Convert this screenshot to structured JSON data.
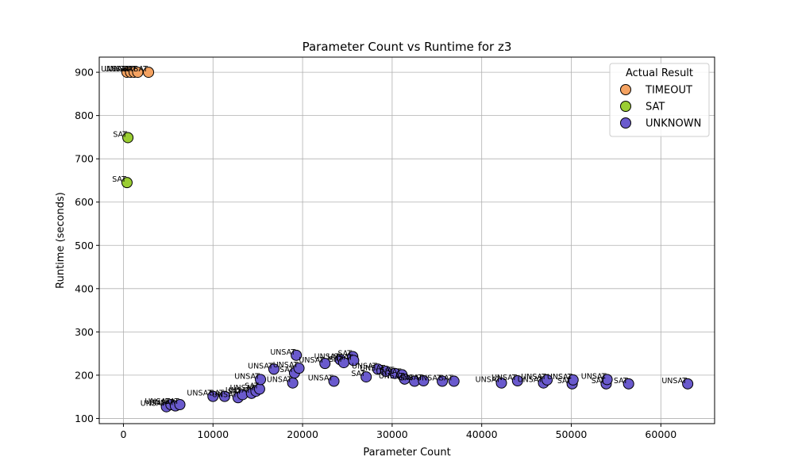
{
  "chart_data": {
    "type": "scatter",
    "title": "Parameter Count vs Runtime for z3",
    "xlabel": "Parameter Count",
    "ylabel": "Runtime (seconds)",
    "xlim": [
      -2700,
      66000
    ],
    "ylim": [
      88,
      935
    ],
    "xticks": [
      0,
      10000,
      20000,
      30000,
      40000,
      50000,
      60000
    ],
    "yticks": [
      100,
      200,
      300,
      400,
      500,
      600,
      700,
      800,
      900
    ],
    "grid": true,
    "legend": {
      "title": "Actual Result",
      "position": "top-right"
    },
    "series": [
      {
        "name": "TIMEOUT",
        "color": "#f4a261",
        "points": [
          {
            "x": 400,
            "y": 900,
            "label": "UNSAT"
          },
          {
            "x": 800,
            "y": 900,
            "label": "UNSAT"
          },
          {
            "x": 1200,
            "y": 900,
            "label": "UNSAT"
          },
          {
            "x": 1600,
            "y": 900,
            "label": "SAT"
          },
          {
            "x": 2800,
            "y": 900,
            "label": "SAT"
          }
        ]
      },
      {
        "name": "SAT",
        "color": "#9acd32",
        "points": [
          {
            "x": 500,
            "y": 749,
            "label": "SAT"
          },
          {
            "x": 400,
            "y": 645,
            "label": "SAT"
          }
        ]
      },
      {
        "name": "UNKNOWN",
        "color": "#6a5acd",
        "points": [
          {
            "x": 4800,
            "y": 127,
            "label": "UNSAT"
          },
          {
            "x": 5300,
            "y": 132,
            "label": "UNSAT"
          },
          {
            "x": 5800,
            "y": 129,
            "label": "UNSAT"
          },
          {
            "x": 6300,
            "y": 132,
            "label": "SAT"
          },
          {
            "x": 10000,
            "y": 151,
            "label": "UNSAT"
          },
          {
            "x": 11300,
            "y": 151,
            "label": "SAT"
          },
          {
            "x": 12800,
            "y": 148,
            "label": "UNSAT"
          },
          {
            "x": 13300,
            "y": 155,
            "label": "SAT"
          },
          {
            "x": 14300,
            "y": 158,
            "label": "UNSAT"
          },
          {
            "x": 14800,
            "y": 163,
            "label": "UNSAT"
          },
          {
            "x": 15200,
            "y": 168,
            "label": "SAT"
          },
          {
            "x": 15300,
            "y": 190,
            "label": "UNSAT"
          },
          {
            "x": 16800,
            "y": 214,
            "label": "UNSAT"
          },
          {
            "x": 18900,
            "y": 182,
            "label": "UNSAT"
          },
          {
            "x": 19100,
            "y": 205,
            "label": "SAT"
          },
          {
            "x": 19300,
            "y": 246,
            "label": "UNSAT"
          },
          {
            "x": 19600,
            "y": 216,
            "label": "UNSAT"
          },
          {
            "x": 22500,
            "y": 227,
            "label": "UNSAT"
          },
          {
            "x": 23500,
            "y": 186,
            "label": "UNSAT"
          },
          {
            "x": 24200,
            "y": 236,
            "label": "UNSAT"
          },
          {
            "x": 24600,
            "y": 229,
            "label": "SAT"
          },
          {
            "x": 25600,
            "y": 243,
            "label": "SAT"
          },
          {
            "x": 25700,
            "y": 234,
            "label": "UNSAT"
          },
          {
            "x": 27100,
            "y": 196,
            "label": "SAT"
          },
          {
            "x": 28400,
            "y": 214,
            "label": "UNSAT"
          },
          {
            "x": 29300,
            "y": 209,
            "label": "UNSAT"
          },
          {
            "x": 30300,
            "y": 204,
            "label": "SAT"
          },
          {
            "x": 31100,
            "y": 201,
            "label": "UNSAT"
          },
          {
            "x": 31400,
            "y": 191,
            "label": "UNSAT"
          },
          {
            "x": 32500,
            "y": 186,
            "label": "SAT"
          },
          {
            "x": 33500,
            "y": 187,
            "label": "UNSAT"
          },
          {
            "x": 35600,
            "y": 186,
            "label": "UNSAT"
          },
          {
            "x": 36900,
            "y": 186,
            "label": "SAT"
          },
          {
            "x": 42200,
            "y": 182,
            "label": "UNSAT"
          },
          {
            "x": 44000,
            "y": 187,
            "label": "UNSAT"
          },
          {
            "x": 46900,
            "y": 182,
            "label": "UNSAT"
          },
          {
            "x": 47300,
            "y": 189,
            "label": "UNSAT"
          },
          {
            "x": 50100,
            "y": 180,
            "label": "SAT"
          },
          {
            "x": 50200,
            "y": 189,
            "label": "UNSAT"
          },
          {
            "x": 53900,
            "y": 180,
            "label": "SAT"
          },
          {
            "x": 54000,
            "y": 190,
            "label": "UNSAT"
          },
          {
            "x": 56400,
            "y": 180,
            "label": "SAT"
          },
          {
            "x": 63000,
            "y": 180,
            "label": "UNSAT"
          }
        ]
      }
    ]
  }
}
